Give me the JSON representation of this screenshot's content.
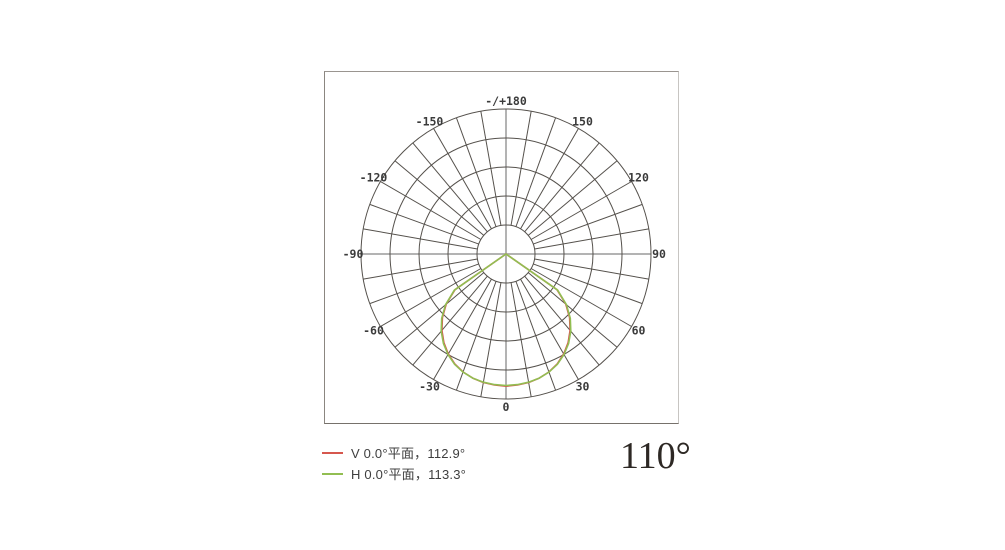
{
  "legend": {
    "items": [
      {
        "series": "V",
        "label": "V 0.0°平面，112.9°",
        "color": "#d6574e"
      },
      {
        "series": "H",
        "label": "H 0.0°平面，113.3°",
        "color": "#92be52"
      }
    ]
  },
  "beam_angle_label": "110°",
  "chart_data": {
    "type": "line",
    "projection": "polar",
    "title": "",
    "angle_axis": {
      "unit": "deg",
      "zero_position": "bottom",
      "labels": [
        {
          "angle": 0,
          "text": "0"
        },
        {
          "angle": 30,
          "text": "30"
        },
        {
          "angle": 60,
          "text": "60"
        },
        {
          "angle": 90,
          "text": "90"
        },
        {
          "angle": 120,
          "text": "120"
        },
        {
          "angle": 150,
          "text": "150"
        },
        {
          "angle": 180,
          "text": "-/+180"
        },
        {
          "angle": -150,
          "text": "-150"
        },
        {
          "angle": -120,
          "text": "-120"
        },
        {
          "angle": -90,
          "text": "-90"
        },
        {
          "angle": -60,
          "text": "-60"
        },
        {
          "angle": -30,
          "text": "-30"
        }
      ]
    },
    "grid": {
      "rings": 5,
      "radial_step_deg": 10,
      "hub_ratio": 0.2,
      "line_color": "#55514c",
      "axis_color": "#b3b3b3",
      "label_color": "#3b3b3b"
    },
    "series": [
      {
        "name": "V 0.0°平面",
        "beam_angle_deg": 112.9,
        "color": "#d6574e",
        "points": [
          [
            -90,
            0
          ],
          [
            -55,
            0.429
          ],
          [
            -50,
            0.538
          ],
          [
            -45,
            0.62
          ],
          [
            -40,
            0.688
          ],
          [
            -35,
            0.747
          ],
          [
            -30,
            0.796
          ],
          [
            -25,
            0.836
          ],
          [
            -20,
            0.866
          ],
          [
            -15,
            0.886
          ],
          [
            -10,
            0.9
          ],
          [
            -5,
            0.907
          ],
          [
            0,
            0.912
          ],
          [
            5,
            0.907
          ],
          [
            10,
            0.9
          ],
          [
            15,
            0.886
          ],
          [
            20,
            0.866
          ],
          [
            25,
            0.836
          ],
          [
            30,
            0.796
          ],
          [
            35,
            0.747
          ],
          [
            40,
            0.688
          ],
          [
            45,
            0.62
          ],
          [
            50,
            0.538
          ],
          [
            55,
            0.429
          ],
          [
            90,
            0
          ]
        ]
      },
      {
        "name": "H 0.0°平面",
        "beam_angle_deg": 113.3,
        "color": "#92be52",
        "points": [
          [
            -90,
            0
          ],
          [
            -55,
            0.435
          ],
          [
            -50,
            0.545
          ],
          [
            -45,
            0.627
          ],
          [
            -40,
            0.695
          ],
          [
            -35,
            0.753
          ],
          [
            -30,
            0.8
          ],
          [
            -25,
            0.839
          ],
          [
            -20,
            0.867
          ],
          [
            -15,
            0.886
          ],
          [
            -10,
            0.898
          ],
          [
            -5,
            0.904
          ],
          [
            0,
            0.907
          ],
          [
            5,
            0.904
          ],
          [
            10,
            0.898
          ],
          [
            15,
            0.886
          ],
          [
            20,
            0.867
          ],
          [
            25,
            0.839
          ],
          [
            30,
            0.8
          ],
          [
            35,
            0.753
          ],
          [
            40,
            0.695
          ],
          [
            45,
            0.627
          ],
          [
            50,
            0.545
          ],
          [
            55,
            0.435
          ],
          [
            90,
            0
          ]
        ]
      }
    ]
  }
}
